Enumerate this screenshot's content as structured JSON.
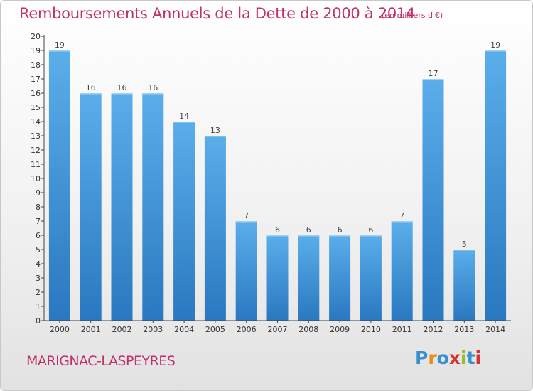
{
  "header": {
    "title": "Remboursements Annuels de la Dette de 2000 à 2014",
    "unit": "(en milliers d'€)"
  },
  "footer": {
    "commune": "MARIGNAC-LASPEYRES",
    "logo_text": "Proxiti",
    "logo_colors": [
      "#3a8fd0",
      "#e88a1a",
      "#3a8fd0",
      "#d6322e",
      "#8fbf2a",
      "#3a8fd0",
      "#d6322e"
    ]
  },
  "colors": {
    "bar_top": "#5aaeea",
    "bar_bottom": "#2a78c0",
    "axis": "#444444",
    "text_accent": "#c0306a"
  },
  "chart_data": {
    "type": "bar",
    "categories": [
      "2000",
      "2001",
      "2002",
      "2003",
      "2004",
      "2005",
      "2006",
      "2007",
      "2008",
      "2009",
      "2010",
      "2011",
      "2012",
      "2013",
      "2014"
    ],
    "values": [
      19,
      16,
      16,
      16,
      14,
      13,
      7,
      6,
      6,
      6,
      6,
      7,
      17,
      5,
      19
    ],
    "data_labels": [
      "19",
      "16",
      "16",
      "16",
      "14",
      "13",
      "7",
      "6",
      "6",
      "6",
      "6",
      "7",
      "17",
      "5",
      "19"
    ],
    "y_ticks": [
      "0",
      "1",
      "2",
      "3",
      "4",
      "5",
      "6",
      "7",
      "8",
      "9",
      "10",
      "11",
      "12",
      "13",
      "14",
      "15",
      "16",
      "17",
      "18",
      "19",
      "20"
    ],
    "ylim": [
      0,
      20
    ],
    "grid": false,
    "legend": "none"
  }
}
